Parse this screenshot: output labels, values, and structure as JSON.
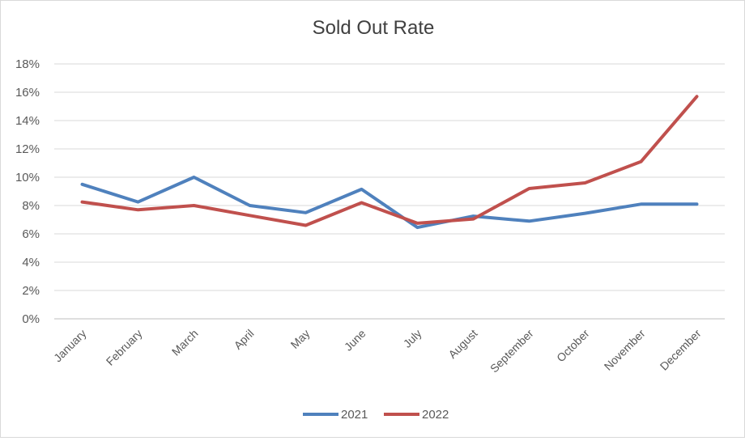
{
  "chart_data": {
    "type": "line",
    "title": "Sold Out Rate",
    "xlabel": "",
    "ylabel": "",
    "categories": [
      "January",
      "February",
      "March",
      "April",
      "May",
      "June",
      "July",
      "August",
      "September",
      "October",
      "November",
      "December"
    ],
    "series": [
      {
        "name": "2021",
        "color": "#4f81bd",
        "values": [
          9.5,
          8.25,
          10.0,
          8.0,
          7.5,
          9.15,
          6.45,
          7.25,
          6.9,
          7.45,
          8.1,
          8.1
        ]
      },
      {
        "name": "2022",
        "color": "#c0504d",
        "values": [
          8.25,
          7.7,
          8.0,
          7.3,
          6.6,
          8.2,
          6.75,
          7.05,
          9.2,
          9.6,
          11.1,
          15.7
        ]
      }
    ],
    "ylim": [
      0,
      18
    ],
    "yticks": [
      "0%",
      "2%",
      "4%",
      "6%",
      "8%",
      "10%",
      "12%",
      "14%",
      "16%",
      "18%"
    ],
    "grid": true,
    "legend": "bottom"
  }
}
